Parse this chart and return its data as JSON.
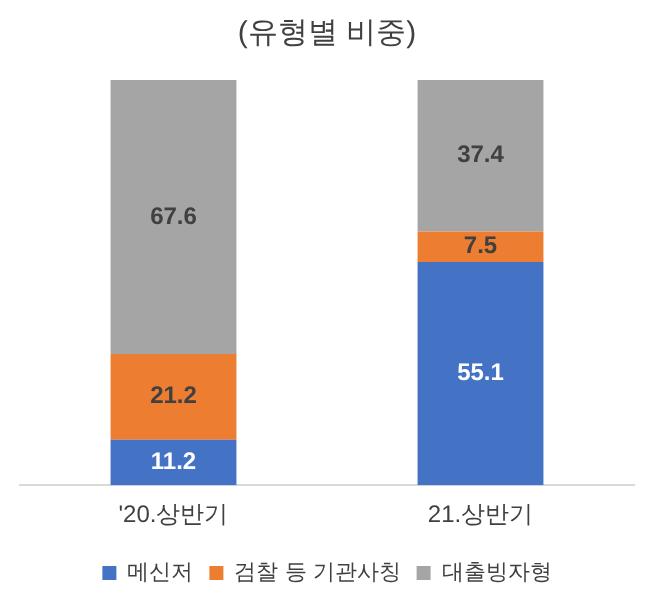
{
  "chart_data": {
    "type": "bar",
    "title": "(유형별 비중)",
    "categories": [
      "'20.상반기",
      "21.상반기"
    ],
    "stacked": true,
    "data_labels": true,
    "legend": "bottom",
    "grid": false,
    "tick_labels": "x",
    "series": [
      {
        "name": "메신저",
        "color": "#4472c4",
        "values": [
          11.2,
          55.1
        ]
      },
      {
        "name": "검찰 등 기관사칭",
        "color": "#ed7d31",
        "values": [
          21.2,
          7.5
        ]
      },
      {
        "name": "대출빙자형",
        "color": "#a5a5a5",
        "values": [
          67.6,
          37.4
        ]
      }
    ]
  }
}
